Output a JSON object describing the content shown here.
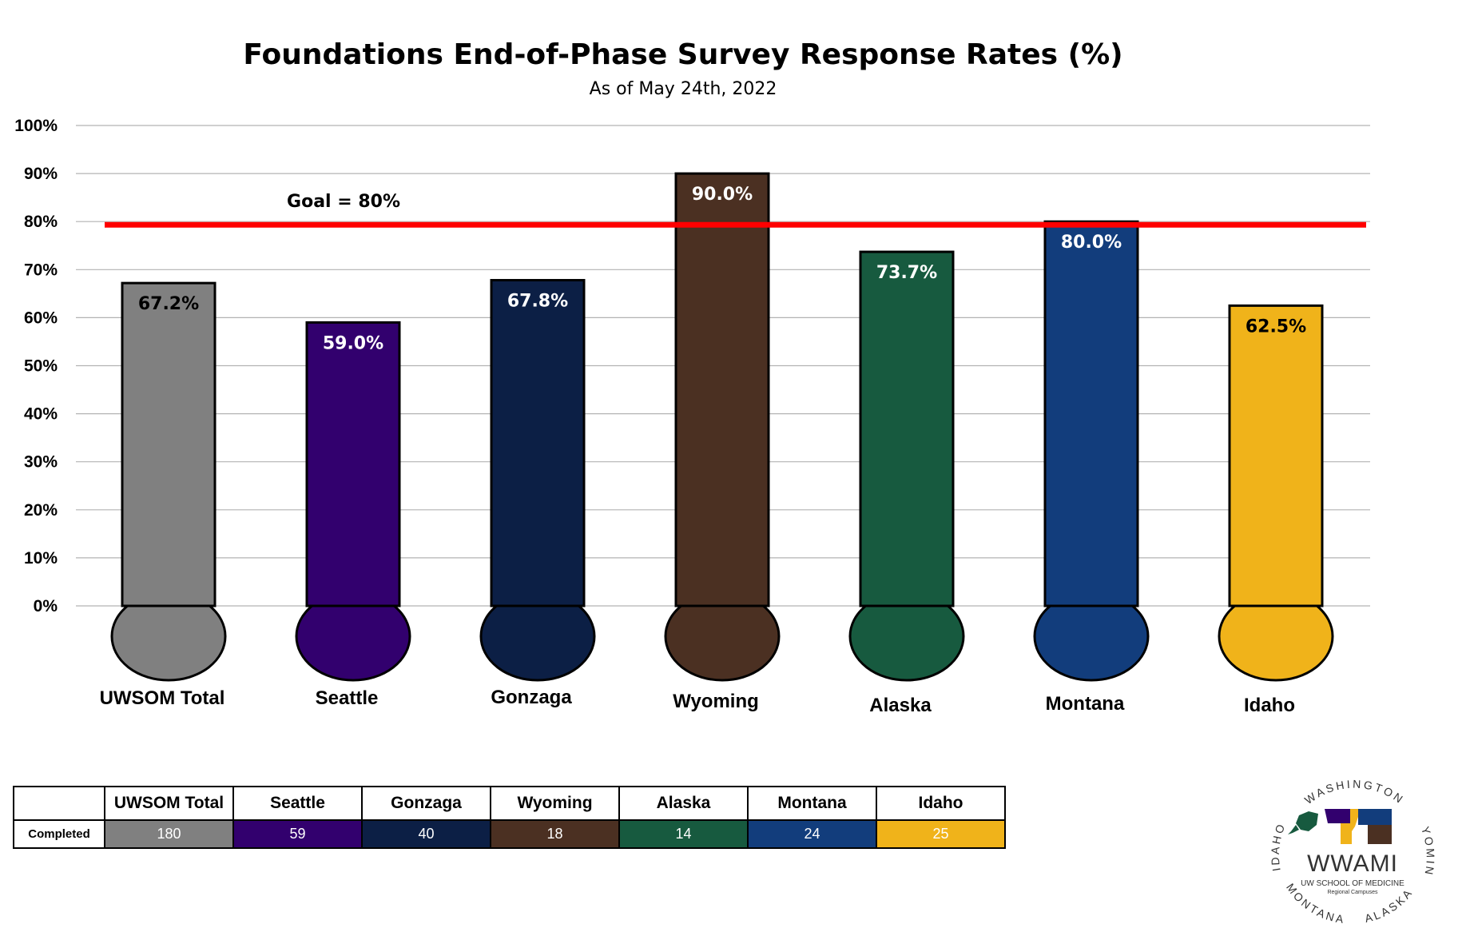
{
  "chart_data": {
    "type": "bar",
    "title": "Foundations End-of-Phase Survey Response Rates (%)",
    "subtitle": "As of May 24th, 2022",
    "categories": [
      "UWSOM Total",
      "Seattle",
      "Gonzaga",
      "Wyoming",
      "Alaska",
      "Montana",
      "Idaho"
    ],
    "values": [
      67.2,
      59.0,
      67.8,
      90.0,
      73.7,
      80.0,
      62.5
    ],
    "value_labels": [
      "67.2%",
      "59.0%",
      "67.8%",
      "90.0%",
      "73.7%",
      "80.0%",
      "62.5%"
    ],
    "colors": [
      "#808080",
      "#32006e",
      "#0c1f45",
      "#4b3022",
      "#175a3f",
      "#123d7c",
      "#f0b31a"
    ],
    "value_label_colors": [
      "#000000",
      "#ffffff",
      "#ffffff",
      "#ffffff",
      "#ffffff",
      "#ffffff",
      "#000000"
    ],
    "ylim": [
      0,
      100
    ],
    "yticks": [
      "0%",
      "10%",
      "20%",
      "30%",
      "40%",
      "50%",
      "60%",
      "70%",
      "80%",
      "90%",
      "100%"
    ],
    "grid": true,
    "goal": {
      "value": 80,
      "label": "Goal = 80%",
      "color": "#ff0000"
    }
  },
  "table": {
    "row_label": "Completed",
    "headers": [
      "UWSOM Total",
      "Seattle",
      "Gonzaga",
      "Wyoming",
      "Alaska",
      "Montana",
      "Idaho"
    ],
    "values": [
      "180",
      "59",
      "40",
      "18",
      "14",
      "24",
      "25"
    ]
  },
  "logo": {
    "ring_top": "WASHINGTON",
    "ring_right": "WYOMING",
    "ring_left": "IDAHO",
    "ring_bottom_left": "MONTANA",
    "ring_bottom_right": "ALASKA",
    "main": "WWAMI",
    "sub": "UW SCHOOL OF MEDICINE",
    "sub2": "Regional Campuses"
  }
}
